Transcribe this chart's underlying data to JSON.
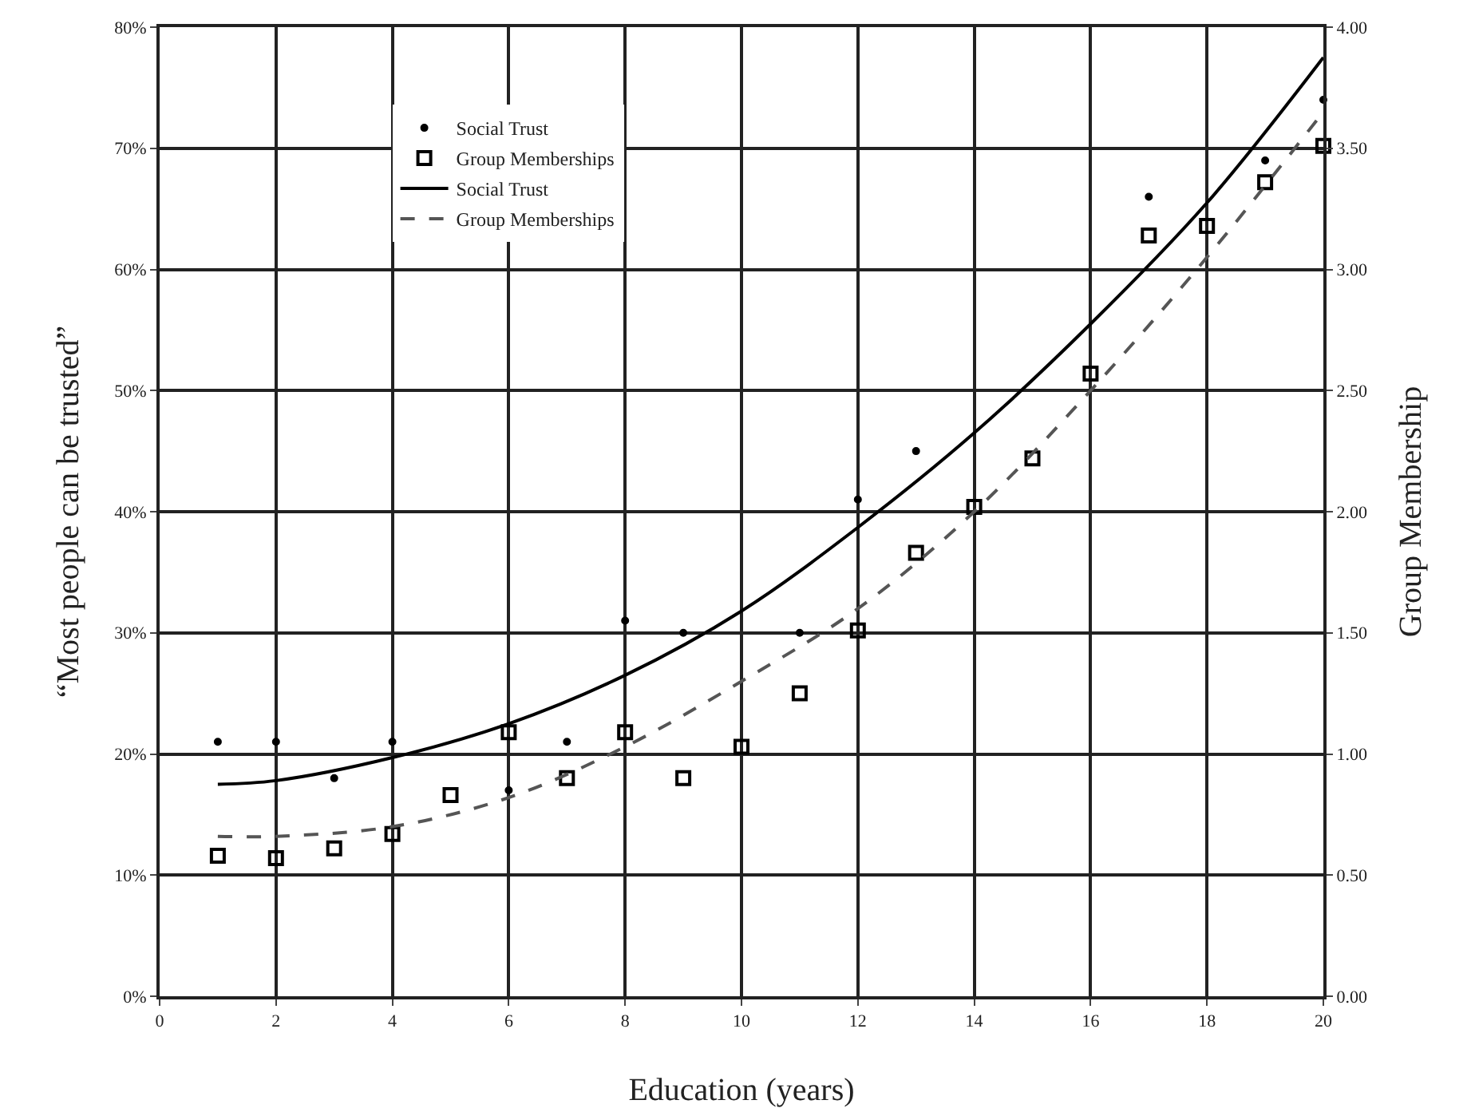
{
  "chart_data": {
    "type": "scatter",
    "xlabel": "Education (years)",
    "ylabel": "“Most people can be trusted”",
    "y2label": "Group Membership",
    "x": [
      1,
      2,
      3,
      4,
      5,
      6,
      7,
      8,
      9,
      10,
      11,
      12,
      13,
      14,
      15,
      16,
      17,
      18,
      19,
      20
    ],
    "series": [
      {
        "name": "Social Trust",
        "marker": "circle",
        "color": "#000000",
        "values": [
          21,
          21,
          18,
          21,
          null,
          17,
          21,
          31,
          30,
          null,
          30,
          41,
          45,
          null,
          null,
          null,
          66,
          null,
          69,
          74
        ]
      },
      {
        "name": "Group Memberships",
        "marker": "square",
        "axis": "y2",
        "color": "#000000",
        "values": [
          0.58,
          0.57,
          0.61,
          0.67,
          0.83,
          1.09,
          0.9,
          1.09,
          0.9,
          1.03,
          1.25,
          1.51,
          1.83,
          2.02,
          2.22,
          2.57,
          3.14,
          3.18,
          3.36,
          3.51
        ]
      },
      {
        "name": "Social Trust",
        "type": "line",
        "marker": "none",
        "line_style": "solid",
        "color": "#000000",
        "x": [
          1,
          2,
          4,
          6,
          8,
          10,
          12,
          14,
          16,
          18,
          20
        ],
        "values": [
          17.5,
          17.8,
          19.7,
          22.5,
          26.5,
          31.8,
          38.7,
          46.5,
          55.5,
          65.5,
          77.5
        ]
      },
      {
        "name": "Group Memberships",
        "type": "line",
        "marker": "none",
        "line_style": "dashed",
        "axis": "y2",
        "color": "#555555",
        "x": [
          1,
          2,
          4,
          6,
          8,
          10,
          12,
          14,
          16,
          18,
          20
        ],
        "values": [
          0.66,
          0.66,
          0.7,
          0.82,
          1.03,
          1.3,
          1.6,
          2.0,
          2.5,
          3.05,
          3.65
        ]
      }
    ],
    "xlim": [
      0,
      20
    ],
    "xticks": [
      0,
      2,
      4,
      6,
      8,
      10,
      12,
      14,
      16,
      18,
      20
    ],
    "ylim": [
      0,
      80
    ],
    "yticks": [
      {
        "value": 0,
        "label": "0%"
      },
      {
        "value": 10,
        "label": "10%"
      },
      {
        "value": 20,
        "label": "20%"
      },
      {
        "value": 30,
        "label": "30%"
      },
      {
        "value": 40,
        "label": "40%"
      },
      {
        "value": 50,
        "label": "50%"
      },
      {
        "value": 60,
        "label": "60%"
      },
      {
        "value": 70,
        "label": "70%"
      },
      {
        "value": 80,
        "label": "80%"
      }
    ],
    "y2lim": [
      0,
      4
    ],
    "y2ticks": [
      {
        "value": 0,
        "label": "0.00"
      },
      {
        "value": 0.5,
        "label": "0.50"
      },
      {
        "value": 1,
        "label": "1.00"
      },
      {
        "value": 1.5,
        "label": "1.50"
      },
      {
        "value": 2,
        "label": "2.00"
      },
      {
        "value": 2.5,
        "label": "2.50"
      },
      {
        "value": 3,
        "label": "3.00"
      },
      {
        "value": 3.5,
        "label": "3.50"
      },
      {
        "value": 4,
        "label": "4.00"
      }
    ],
    "grid": true,
    "legend": "top left"
  }
}
